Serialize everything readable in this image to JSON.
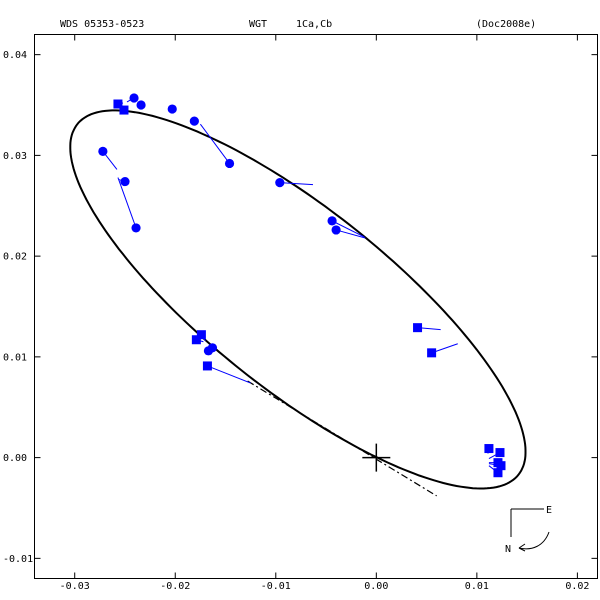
{
  "header": {
    "designation": "WDS 05353-0523",
    "author": "WGT",
    "components": "1Ca,Cb",
    "reference": "(Doc2008e)"
  },
  "compass": {
    "east": "E",
    "north": "N"
  },
  "colors": {
    "observations": "#0000ff",
    "orbit": "#000000",
    "node_line": "#000000"
  },
  "chart_data": {
    "type": "scatter",
    "xlim": [
      -0.034,
      0.022
    ],
    "ylim": [
      -0.012,
      0.042
    ],
    "x_ticks": [
      {
        "value": -0.03,
        "label": "-0.03"
      },
      {
        "value": -0.02,
        "label": "-0.02"
      },
      {
        "value": -0.01,
        "label": "-0.01"
      },
      {
        "value": 0.0,
        "label": "0.00"
      },
      {
        "value": 0.01,
        "label": "0.01"
      },
      {
        "value": 0.02,
        "label": "0.02"
      }
    ],
    "y_ticks": [
      {
        "value": -0.01,
        "label": "-0.01"
      },
      {
        "value": 0.0,
        "label": "0.00"
      },
      {
        "value": 0.01,
        "label": "0.01"
      },
      {
        "value": 0.02,
        "label": "0.02"
      },
      {
        "value": 0.03,
        "label": "0.03"
      },
      {
        "value": 0.04,
        "label": "0.04"
      }
    ],
    "grid": false,
    "primary_star": [
      0.0,
      0.0
    ],
    "orbit": {
      "center": [
        -0.0078,
        0.0157
      ],
      "semi_major": 0.028,
      "semi_minor": 0.009,
      "rotation_deg": 141.6
    },
    "line_of_nodes": [
      [
        -0.0128,
        0.0076
      ],
      [
        0.006,
        -0.0038
      ]
    ],
    "series": [
      {
        "marker": "circle",
        "points": [
          {
            "x": -0.0272,
            "y": 0.0304,
            "ox": -0.0258,
            "oy": 0.0286
          },
          {
            "x": -0.025,
            "y": 0.0274,
            "ox": -0.0256,
            "oy": 0.0276
          },
          {
            "x": -0.0239,
            "y": 0.0228,
            "ox": -0.0257,
            "oy": 0.0278
          },
          {
            "x": -0.0241,
            "y": 0.0357,
            "ox": -0.0248,
            "oy": 0.0353
          },
          {
            "x": -0.0234,
            "y": 0.035,
            "ox": -0.0236,
            "oy": 0.0352
          },
          {
            "x": -0.0203,
            "y": 0.0346,
            "ox": -0.0205,
            "oy": 0.0347
          },
          {
            "x": -0.0181,
            "y": 0.0334,
            "ox": -0.0182,
            "oy": 0.0335
          },
          {
            "x": -0.0146,
            "y": 0.0292,
            "ox": -0.0175,
            "oy": 0.0331
          },
          {
            "x": -0.0096,
            "y": 0.0273,
            "ox": -0.0063,
            "oy": 0.0271
          },
          {
            "x": -0.0044,
            "y": 0.0235,
            "ox": -0.0012,
            "oy": 0.0219
          },
          {
            "x": -0.004,
            "y": 0.0226,
            "ox": -0.0011,
            "oy": 0.0218
          },
          {
            "x": -0.0167,
            "y": 0.0106,
            "ox": -0.0166,
            "oy": 0.0106
          },
          {
            "x": -0.0163,
            "y": 0.0109,
            "ox": -0.0163,
            "oy": 0.0108
          }
        ]
      },
      {
        "marker": "square",
        "points": [
          {
            "x": -0.0257,
            "y": 0.0351,
            "ox": -0.0252,
            "oy": 0.0352
          },
          {
            "x": -0.0251,
            "y": 0.0345,
            "ox": -0.0248,
            "oy": 0.0346
          },
          {
            "x": -0.0174,
            "y": 0.0122,
            "ox": -0.017,
            "oy": 0.0116
          },
          {
            "x": -0.0179,
            "y": 0.0117,
            "ox": -0.0172,
            "oy": 0.0115
          },
          {
            "x": -0.0168,
            "y": 0.0091,
            "ox": -0.0125,
            "oy": 0.0074
          },
          {
            "x": 0.0041,
            "y": 0.0129,
            "ox": 0.0064,
            "oy": 0.0127
          },
          {
            "x": 0.0055,
            "y": 0.0104,
            "ox": 0.0081,
            "oy": 0.0113
          },
          {
            "x": 0.0112,
            "y": 0.0009,
            "ox": 0.0111,
            "oy": 0.0004
          },
          {
            "x": 0.0123,
            "y": 0.0005,
            "ox": 0.0112,
            "oy": -0.0001
          },
          {
            "x": 0.0121,
            "y": -0.0005,
            "ox": 0.0112,
            "oy": -0.0005
          },
          {
            "x": 0.0124,
            "y": -0.0008,
            "ox": 0.0112,
            "oy": -0.0006
          },
          {
            "x": 0.0121,
            "y": -0.0015,
            "ox": 0.0112,
            "oy": -0.0008
          }
        ]
      }
    ]
  }
}
